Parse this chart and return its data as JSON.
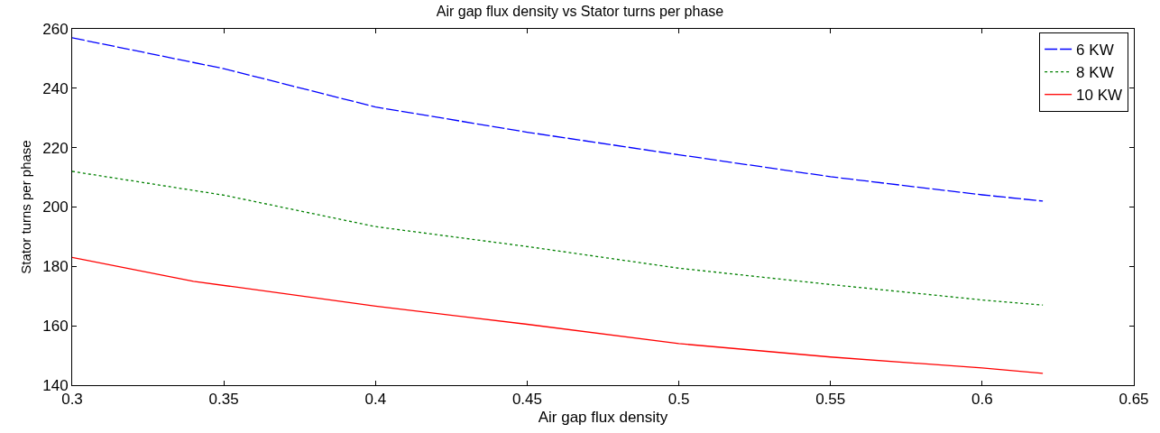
{
  "chart_data": {
    "type": "line",
    "title": "Air gap flux density vs Stator turns per phase",
    "xlabel": "Air gap flux density",
    "ylabel": "Stator turns per phase",
    "x": [
      0.3,
      0.34,
      0.35,
      0.4,
      0.45,
      0.5,
      0.55,
      0.6,
      0.62
    ],
    "series": [
      {
        "name": "6 KW",
        "color": "#0000ff",
        "line_style": "dashed",
        "values": [
          257,
          null,
          246.6,
          233.7,
          225.2,
          217.6,
          210.2,
          204.1,
          202
        ]
      },
      {
        "name": "8 KW",
        "color": "#008000",
        "line_style": "dotted",
        "values": [
          212,
          null,
          204,
          193.4,
          186.7,
          179.4,
          173.9,
          168.7,
          167
        ]
      },
      {
        "name": "10 KW",
        "color": "#ff0000",
        "line_style": "solid",
        "values": [
          183,
          175,
          null,
          166.6,
          160.5,
          154,
          149.5,
          145.8,
          144
        ]
      }
    ],
    "xlim": [
      0.3,
      0.65
    ],
    "xticks": [
      0.3,
      0.35,
      0.4,
      0.45,
      0.5,
      0.55,
      0.6,
      0.65
    ],
    "ylim": [
      140,
      260
    ],
    "yticks": [
      140,
      160,
      180,
      200,
      220,
      240,
      260
    ],
    "legend": "top right"
  }
}
